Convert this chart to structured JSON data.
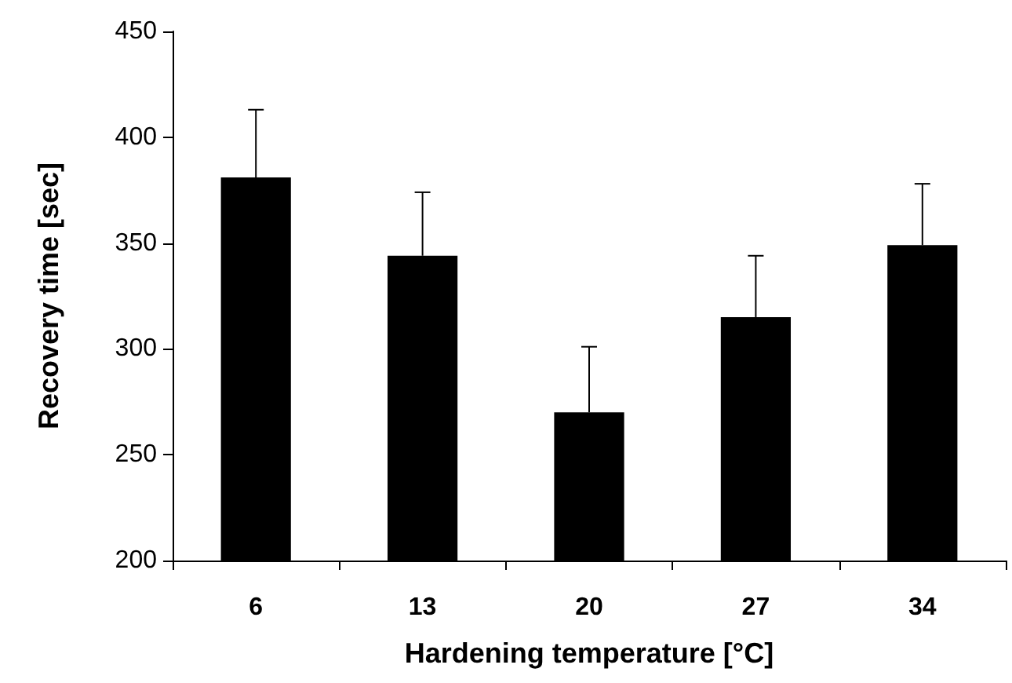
{
  "chart_data": {
    "type": "bar",
    "xlabel": "Hardening temperature [°C]",
    "ylabel": "Recovery time [sec]",
    "categories": [
      "6",
      "13",
      "20",
      "27",
      "34"
    ],
    "values": [
      381,
      344,
      270,
      315,
      349
    ],
    "errors": [
      [
        381,
        413
      ],
      [
        344,
        374
      ],
      [
        270,
        301
      ],
      [
        315,
        344
      ],
      [
        349,
        378
      ]
    ],
    "color": "#000000",
    "ylim": [
      200,
      450
    ],
    "yticks": [
      200,
      250,
      300,
      350,
      400,
      450
    ],
    "grid": false
  }
}
